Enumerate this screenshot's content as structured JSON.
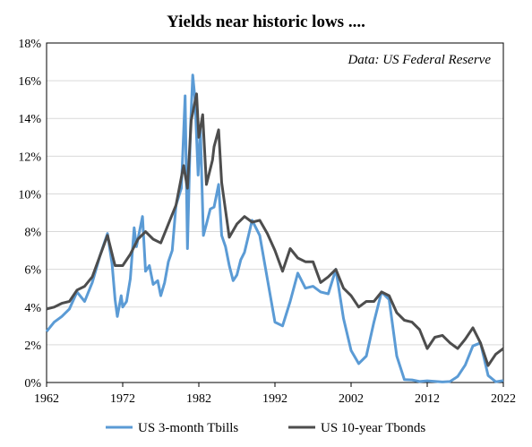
{
  "chart_data": {
    "type": "line",
    "title": "Yields  near historic lows ....",
    "annotation": "Data: US Federal Reserve",
    "xlabel": "",
    "ylabel": "",
    "xlim": [
      1962,
      2022
    ],
    "ylim": [
      0,
      18
    ],
    "x_ticks": [
      1962,
      1972,
      1982,
      1992,
      2002,
      2012,
      2022
    ],
    "y_ticks": [
      0,
      2,
      4,
      6,
      8,
      10,
      12,
      14,
      16,
      18
    ],
    "y_tick_labels": [
      "0%",
      "2%",
      "4%",
      "6%",
      "8%",
      "10%",
      "12%",
      "14%",
      "16%",
      "18%"
    ],
    "grid": true,
    "legend_position": "bottom",
    "series": [
      {
        "name": "US 3-month Tbills",
        "color": "#5b9bd5",
        "points": [
          [
            1962,
            2.7
          ],
          [
            1963,
            3.2
          ],
          [
            1964,
            3.5
          ],
          [
            1965,
            3.9
          ],
          [
            1966,
            4.8
          ],
          [
            1967,
            4.3
          ],
          [
            1968,
            5.3
          ],
          [
            1969,
            6.7
          ],
          [
            1970,
            7.9
          ],
          [
            1970.6,
            6.3
          ],
          [
            1971,
            4.4
          ],
          [
            1971.3,
            3.5
          ],
          [
            1971.8,
            4.6
          ],
          [
            1972,
            4.0
          ],
          [
            1972.5,
            4.3
          ],
          [
            1973,
            5.5
          ],
          [
            1973.5,
            8.2
          ],
          [
            1973.8,
            7.2
          ],
          [
            1974,
            7.6
          ],
          [
            1974.6,
            8.8
          ],
          [
            1975,
            5.9
          ],
          [
            1975.5,
            6.2
          ],
          [
            1976,
            5.2
          ],
          [
            1976.6,
            5.4
          ],
          [
            1977,
            4.6
          ],
          [
            1977.5,
            5.3
          ],
          [
            1978,
            6.4
          ],
          [
            1978.5,
            7.0
          ],
          [
            1979,
            9.4
          ],
          [
            1979.7,
            10.3
          ],
          [
            1980.2,
            15.2
          ],
          [
            1980.5,
            7.1
          ],
          [
            1980.9,
            13.5
          ],
          [
            1981.2,
            16.3
          ],
          [
            1981.5,
            15.0
          ],
          [
            1981.9,
            11.0
          ],
          [
            1982.2,
            13.5
          ],
          [
            1982.6,
            7.8
          ],
          [
            1983,
            8.4
          ],
          [
            1983.5,
            9.2
          ],
          [
            1984,
            9.3
          ],
          [
            1984.6,
            10.5
          ],
          [
            1985,
            7.8
          ],
          [
            1985.5,
            7.2
          ],
          [
            1986,
            6.2
          ],
          [
            1986.5,
            5.4
          ],
          [
            1987,
            5.7
          ],
          [
            1987.5,
            6.5
          ],
          [
            1988,
            6.9
          ],
          [
            1989,
            8.6
          ],
          [
            1990,
            7.8
          ],
          [
            1991,
            5.5
          ],
          [
            1992,
            3.2
          ],
          [
            1993,
            3.0
          ],
          [
            1994,
            4.3
          ],
          [
            1995,
            5.8
          ],
          [
            1996,
            5.0
          ],
          [
            1997,
            5.1
          ],
          [
            1998,
            4.8
          ],
          [
            1999,
            4.7
          ],
          [
            2000,
            6.0
          ],
          [
            2001,
            3.4
          ],
          [
            2002,
            1.7
          ],
          [
            2003,
            1.0
          ],
          [
            2004,
            1.4
          ],
          [
            2005,
            3.2
          ],
          [
            2006,
            4.8
          ],
          [
            2007,
            4.4
          ],
          [
            2008,
            1.4
          ],
          [
            2009,
            0.15
          ],
          [
            2010,
            0.14
          ],
          [
            2011,
            0.05
          ],
          [
            2012,
            0.09
          ],
          [
            2013,
            0.06
          ],
          [
            2014,
            0.03
          ],
          [
            2015,
            0.05
          ],
          [
            2016,
            0.32
          ],
          [
            2017,
            0.93
          ],
          [
            2018,
            1.94
          ],
          [
            2019,
            2.1
          ],
          [
            2020,
            0.37
          ],
          [
            2021,
            0.04
          ],
          [
            2022,
            0.1
          ]
        ]
      },
      {
        "name": "US 10-year Tbonds",
        "color": "#4d4d4d",
        "points": [
          [
            1962,
            3.9
          ],
          [
            1963,
            4.0
          ],
          [
            1964,
            4.2
          ],
          [
            1965,
            4.3
          ],
          [
            1966,
            4.9
          ],
          [
            1967,
            5.1
          ],
          [
            1968,
            5.6
          ],
          [
            1969,
            6.7
          ],
          [
            1970,
            7.8
          ],
          [
            1970.8,
            6.5
          ],
          [
            1971,
            6.2
          ],
          [
            1972,
            6.2
          ],
          [
            1973,
            6.8
          ],
          [
            1974,
            7.6
          ],
          [
            1975,
            8.0
          ],
          [
            1976,
            7.6
          ],
          [
            1977,
            7.4
          ],
          [
            1978,
            8.4
          ],
          [
            1979,
            9.4
          ],
          [
            1980,
            11.5
          ],
          [
            1980.5,
            10.3
          ],
          [
            1981,
            13.9
          ],
          [
            1981.7,
            15.3
          ],
          [
            1982,
            13.0
          ],
          [
            1982.5,
            14.2
          ],
          [
            1983,
            10.5
          ],
          [
            1983.8,
            11.8
          ],
          [
            1984,
            12.5
          ],
          [
            1984.6,
            13.4
          ],
          [
            1985,
            10.6
          ],
          [
            1986,
            7.7
          ],
          [
            1987,
            8.4
          ],
          [
            1988,
            8.8
          ],
          [
            1989,
            8.5
          ],
          [
            1990,
            8.6
          ],
          [
            1991,
            7.9
          ],
          [
            1992,
            7.0
          ],
          [
            1993,
            5.9
          ],
          [
            1994,
            7.1
          ],
          [
            1995,
            6.6
          ],
          [
            1996,
            6.4
          ],
          [
            1997,
            6.4
          ],
          [
            1998,
            5.3
          ],
          [
            1999,
            5.6
          ],
          [
            2000,
            6.0
          ],
          [
            2001,
            5.0
          ],
          [
            2002,
            4.6
          ],
          [
            2003,
            4.0
          ],
          [
            2004,
            4.3
          ],
          [
            2005,
            4.3
          ],
          [
            2006,
            4.8
          ],
          [
            2007,
            4.6
          ],
          [
            2008,
            3.7
          ],
          [
            2009,
            3.3
          ],
          [
            2010,
            3.2
          ],
          [
            2011,
            2.8
          ],
          [
            2012,
            1.8
          ],
          [
            2013,
            2.4
          ],
          [
            2014,
            2.5
          ],
          [
            2015,
            2.1
          ],
          [
            2016,
            1.8
          ],
          [
            2017,
            2.3
          ],
          [
            2018,
            2.9
          ],
          [
            2019,
            2.1
          ],
          [
            2020,
            0.9
          ],
          [
            2021,
            1.5
          ],
          [
            2022,
            1.8
          ]
        ]
      }
    ]
  }
}
